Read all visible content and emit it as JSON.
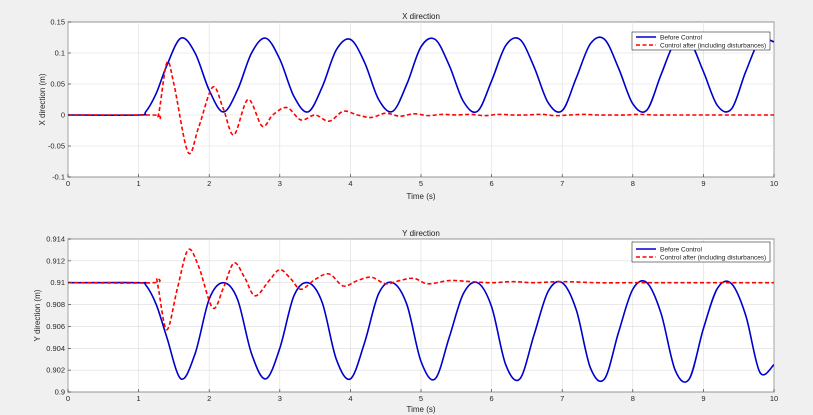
{
  "chart_data": [
    {
      "type": "line",
      "title": "X direction",
      "xlabel": "Time (s)",
      "ylabel": "X direction (m)",
      "xlim": [
        0,
        10
      ],
      "ylim": [
        -0.1,
        0.15
      ],
      "xticks": [
        "0",
        "1",
        "2",
        "3",
        "4",
        "5",
        "6",
        "7",
        "8",
        "9",
        "10"
      ],
      "yticks": [
        "-0.1",
        "-0.05",
        "0",
        "0.05",
        "0.1",
        "0.15"
      ],
      "grid": true,
      "legend": "top-right",
      "series": [
        {
          "name": "Before Control",
          "color": "#0000cc",
          "style": "solid",
          "x": [
            0,
            1,
            1.1,
            1.25,
            1.4,
            1.6,
            1.8,
            2.0,
            2.2,
            2.4,
            2.6,
            2.8,
            3.0,
            3.2,
            3.4,
            3.6,
            3.8,
            4.0,
            4.2,
            4.4,
            4.6,
            4.8,
            5.0,
            5.2,
            5.4,
            5.6,
            5.8,
            6.0,
            6.2,
            6.4,
            6.6,
            6.8,
            7.0,
            7.2,
            7.4,
            7.6,
            7.8,
            8.0,
            8.2,
            8.4,
            8.6,
            8.8,
            9.0,
            9.2,
            9.4,
            9.6,
            9.8,
            10
          ],
          "y": [
            0,
            0,
            0.005,
            0.035,
            0.08,
            0.124,
            0.1,
            0.04,
            0.005,
            0.04,
            0.1,
            0.124,
            0.09,
            0.03,
            0.005,
            0.045,
            0.105,
            0.122,
            0.085,
            0.025,
            0.006,
            0.05,
            0.11,
            0.122,
            0.08,
            0.022,
            0.006,
            0.055,
            0.112,
            0.122,
            0.078,
            0.02,
            0.007,
            0.06,
            0.115,
            0.122,
            0.075,
            0.018,
            0.008,
            0.065,
            0.118,
            0.12,
            0.07,
            0.015,
            0.01,
            0.07,
            0.12,
            0.118
          ]
        },
        {
          "name": "Control after (including disturbances)",
          "color": "#ff0000",
          "style": "dashed",
          "x": [
            0,
            1.2,
            1.28,
            1.4,
            1.5,
            1.7,
            1.85,
            2.05,
            2.2,
            2.35,
            2.55,
            2.75,
            2.9,
            3.1,
            3.3,
            3.5,
            3.7,
            3.9,
            4.1,
            4.3,
            4.5,
            4.7,
            4.9,
            5.1,
            5.3,
            5.5,
            5.7,
            5.9,
            6.1,
            6.3,
            6.5,
            6.7,
            6.9,
            7.1,
            7.3,
            7.5,
            7.7,
            7.9,
            8.1,
            8.3,
            8.5,
            8.7,
            8.9,
            9.1,
            9.3,
            9.5,
            9.7,
            10
          ],
          "y": [
            0,
            0,
            0.0,
            0.084,
            0.05,
            -0.06,
            -0.02,
            0.045,
            0.01,
            -0.032,
            0.025,
            -0.018,
            0.0,
            0.012,
            -0.008,
            0.0,
            -0.01,
            0.006,
            0.0,
            -0.004,
            0.003,
            -0.002,
            0.002,
            -0.001,
            0.001,
            0.0,
            0.001,
            -0.001,
            0.001,
            0.0,
            0.0,
            0.001,
            -0.001,
            0.0,
            0.001,
            0.0,
            0.0,
            0.0,
            0.001,
            0.0,
            0.0,
            0.0,
            0.0,
            0.0,
            0.0,
            0.0,
            0.0,
            0.0
          ]
        }
      ]
    },
    {
      "type": "line",
      "title": "Y direction",
      "xlabel": "Time (s)",
      "ylabel": "Y direction (m)",
      "xlim": [
        0,
        10
      ],
      "ylim": [
        0.9,
        0.914
      ],
      "xticks": [
        "0",
        "1",
        "2",
        "3",
        "4",
        "5",
        "6",
        "7",
        "8",
        "9",
        "10"
      ],
      "yticks": [
        "0.9",
        "0.902",
        "0.904",
        "0.906",
        "0.908",
        "0.91",
        "0.912",
        "0.914"
      ],
      "grid": true,
      "legend": "top-right",
      "series": [
        {
          "name": "Before Control",
          "color": "#0000cc",
          "style": "solid",
          "x": [
            0,
            1,
            1.1,
            1.25,
            1.4,
            1.6,
            1.8,
            2.0,
            2.2,
            2.4,
            2.6,
            2.8,
            3.0,
            3.2,
            3.4,
            3.6,
            3.8,
            4.0,
            4.2,
            4.4,
            4.6,
            4.8,
            5.0,
            5.2,
            5.4,
            5.6,
            5.8,
            6.0,
            6.2,
            6.4,
            6.6,
            6.8,
            7.0,
            7.2,
            7.4,
            7.6,
            7.8,
            8.0,
            8.2,
            8.4,
            8.6,
            8.8,
            9.0,
            9.2,
            9.4,
            9.6,
            9.8,
            10
          ],
          "y": [
            0.91,
            0.91,
            0.9098,
            0.908,
            0.905,
            0.9012,
            0.9035,
            0.9085,
            0.91,
            0.9085,
            0.9035,
            0.9012,
            0.904,
            0.9088,
            0.91,
            0.9082,
            0.903,
            0.9012,
            0.9045,
            0.909,
            0.91,
            0.908,
            0.9028,
            0.9012,
            0.905,
            0.909,
            0.91,
            0.9078,
            0.9025,
            0.9012,
            0.9052,
            0.9092,
            0.91,
            0.9075,
            0.9022,
            0.9012,
            0.9055,
            0.9094,
            0.91,
            0.9072,
            0.902,
            0.9012,
            0.9058,
            0.9095,
            0.9099,
            0.907,
            0.9018,
            0.9025
          ]
        },
        {
          "name": "Control after (including disturbances)",
          "color": "#ff0000",
          "style": "dashed",
          "x": [
            0,
            1.2,
            1.25,
            1.28,
            1.4,
            1.55,
            1.7,
            1.85,
            2.05,
            2.2,
            2.35,
            2.5,
            2.65,
            2.85,
            3.0,
            3.15,
            3.3,
            3.5,
            3.7,
            3.9,
            4.1,
            4.3,
            4.5,
            4.7,
            4.9,
            5.1,
            5.4,
            5.7,
            6.0,
            6.3,
            6.6,
            7.0,
            7.5,
            8.0,
            8.5,
            9.0,
            9.5,
            10
          ],
          "y": [
            0.91,
            0.91,
            0.9104,
            0.9095,
            0.9057,
            0.9095,
            0.913,
            0.9115,
            0.9077,
            0.9095,
            0.9118,
            0.9105,
            0.9088,
            0.9102,
            0.9112,
            0.9104,
            0.9094,
            0.9103,
            0.9108,
            0.9097,
            0.9102,
            0.9105,
            0.9099,
            0.9102,
            0.9104,
            0.9099,
            0.9102,
            0.9101,
            0.91,
            0.9101,
            0.91,
            0.9101,
            0.91,
            0.91,
            0.91,
            0.91,
            0.91,
            0.91
          ]
        }
      ]
    }
  ]
}
